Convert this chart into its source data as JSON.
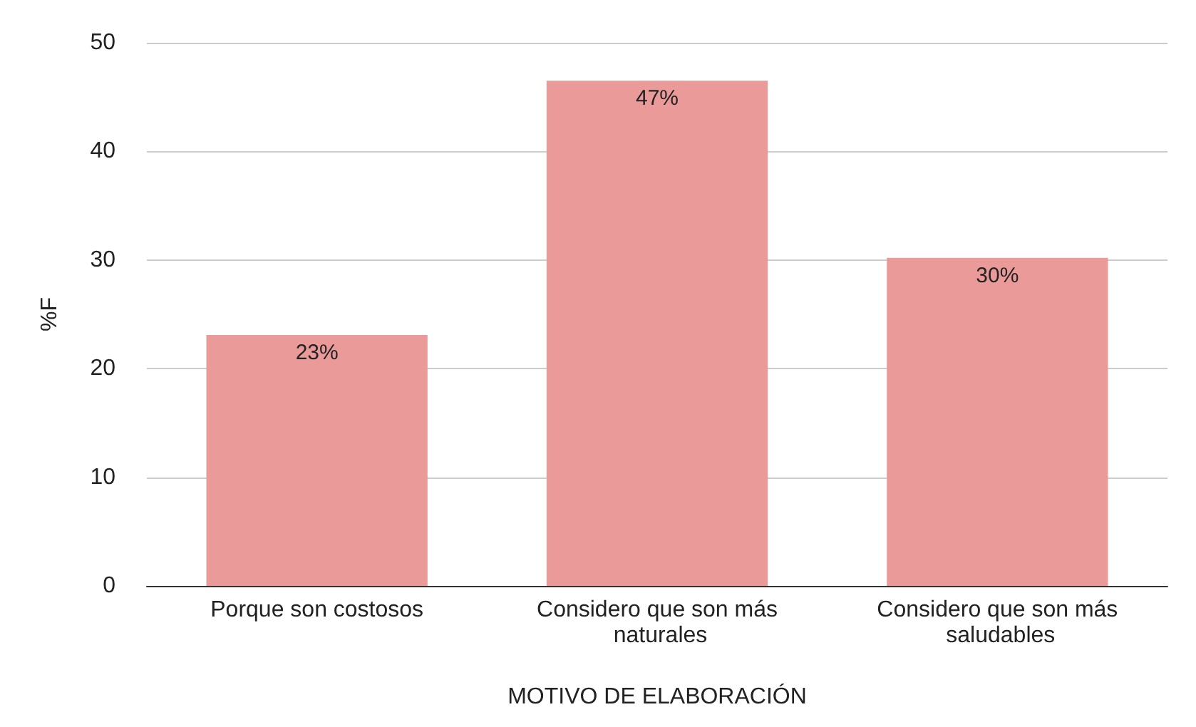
{
  "chart_data": {
    "type": "bar",
    "xlabel": "MOTIVO DE ELABORACIÓN",
    "ylabel": "%F",
    "categories": [
      "Porque son costosos",
      "Considero que son más naturales",
      "Considero que son más saludables"
    ],
    "values": [
      23.1,
      46.5,
      30.2
    ],
    "value_labels": [
      "23%",
      "47%",
      "30%"
    ],
    "color": "#ea9a98",
    "ylim": [
      0,
      50
    ],
    "yticks": [
      0,
      10,
      20,
      30,
      40,
      50
    ],
    "grid": "y"
  }
}
